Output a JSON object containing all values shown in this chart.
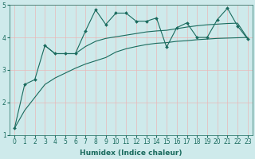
{
  "xlabel": "Humidex (Indice chaleur)",
  "xlim": [
    -0.5,
    23.5
  ],
  "ylim": [
    1,
    5
  ],
  "bg_color": "#ceeaeb",
  "grid_color": "#e8b8b8",
  "line_color": "#1a6b5e",
  "line1_x": [
    0,
    1,
    2,
    3,
    4,
    5,
    6,
    7,
    8,
    9,
    10,
    11,
    12,
    13,
    14,
    15,
    16,
    17,
    18,
    19,
    20,
    21,
    22,
    23
  ],
  "line1_y": [
    1.2,
    2.55,
    2.7,
    3.75,
    3.5,
    3.5,
    3.5,
    4.2,
    4.85,
    4.4,
    4.75,
    4.75,
    4.5,
    4.5,
    4.6,
    3.7,
    4.3,
    4.45,
    4.0,
    4.0,
    4.55,
    4.9,
    4.35,
    3.95
  ],
  "line2_x": [
    0,
    1,
    2,
    3,
    4,
    5,
    6,
    7,
    8,
    9,
    10,
    11,
    12,
    13,
    14,
    15,
    16,
    17,
    18,
    19,
    20,
    21,
    22,
    23
  ],
  "line2_y": [
    1.2,
    1.75,
    2.15,
    2.55,
    2.75,
    2.9,
    3.05,
    3.18,
    3.28,
    3.38,
    3.55,
    3.65,
    3.72,
    3.78,
    3.82,
    3.84,
    3.88,
    3.9,
    3.93,
    3.95,
    3.97,
    3.98,
    3.99,
    4.0
  ],
  "line3_x": [
    3,
    4,
    5,
    6,
    7,
    8,
    9,
    10,
    11,
    12,
    13,
    14,
    15,
    16,
    17,
    18,
    19,
    20,
    21,
    22,
    23
  ],
  "line3_y": [
    3.75,
    3.5,
    3.5,
    3.5,
    3.72,
    3.88,
    3.97,
    4.02,
    4.07,
    4.12,
    4.17,
    4.2,
    4.22,
    4.27,
    4.32,
    4.36,
    4.39,
    4.41,
    4.43,
    4.44,
    3.97
  ],
  "xticks": [
    0,
    1,
    2,
    3,
    4,
    5,
    6,
    7,
    8,
    9,
    10,
    11,
    12,
    13,
    14,
    15,
    16,
    17,
    18,
    19,
    20,
    21,
    22,
    23
  ],
  "yticks": [
    1,
    2,
    3,
    4,
    5
  ],
  "tick_fontsize": 5.5,
  "xlabel_fontsize": 6.5
}
